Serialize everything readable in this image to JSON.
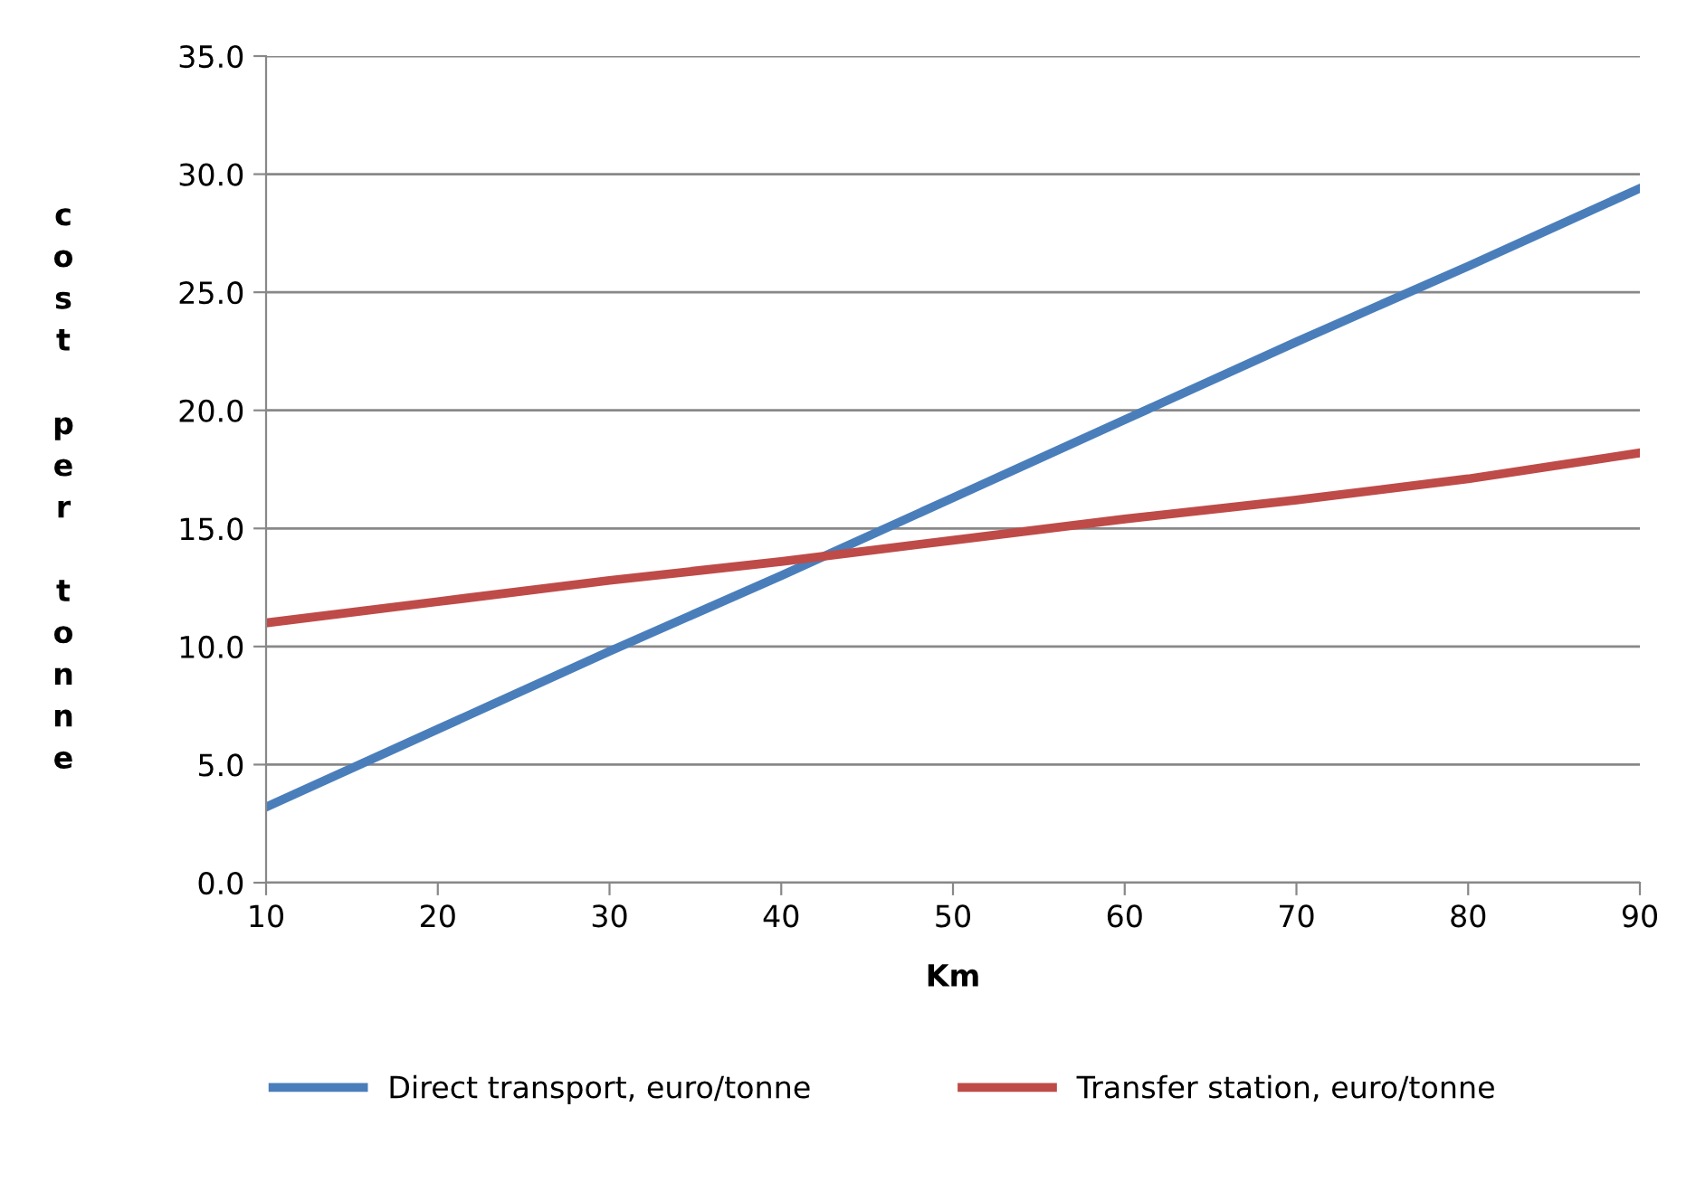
{
  "chart_data": {
    "type": "line",
    "xlabel": "Km",
    "ylabel": "cost per tonne",
    "x": [
      10,
      20,
      30,
      40,
      50,
      60,
      70,
      80,
      90
    ],
    "series": [
      {
        "name": "Direct transport, euro/tonne",
        "color": "#4a7ebb",
        "values": [
          3.2,
          6.5,
          9.8,
          13.0,
          16.3,
          19.6,
          22.9,
          26.1,
          29.4
        ]
      },
      {
        "name": "Transfer station, euro/tonne",
        "color": "#be4b48",
        "values": [
          11.0,
          11.9,
          12.8,
          13.6,
          14.5,
          15.4,
          16.2,
          17.1,
          18.2
        ]
      }
    ],
    "xlim": [
      10,
      90
    ],
    "xticks": [
      10,
      20,
      30,
      40,
      50,
      60,
      70,
      80,
      90
    ],
    "ylim": [
      0,
      35
    ],
    "yticks": [
      {
        "value": 0,
        "label": "0.0"
      },
      {
        "value": 5,
        "label": "5.0"
      },
      {
        "value": 10,
        "label": "10.0"
      },
      {
        "value": 15,
        "label": "15.0"
      },
      {
        "value": 20,
        "label": "20.0"
      },
      {
        "value": 25,
        "label": "25.0"
      },
      {
        "value": 30,
        "label": "30.0"
      },
      {
        "value": 35,
        "label": "35.0"
      }
    ],
    "grid": "y",
    "legend": "bottom",
    "marker": "none",
    "line_style": "solid"
  }
}
